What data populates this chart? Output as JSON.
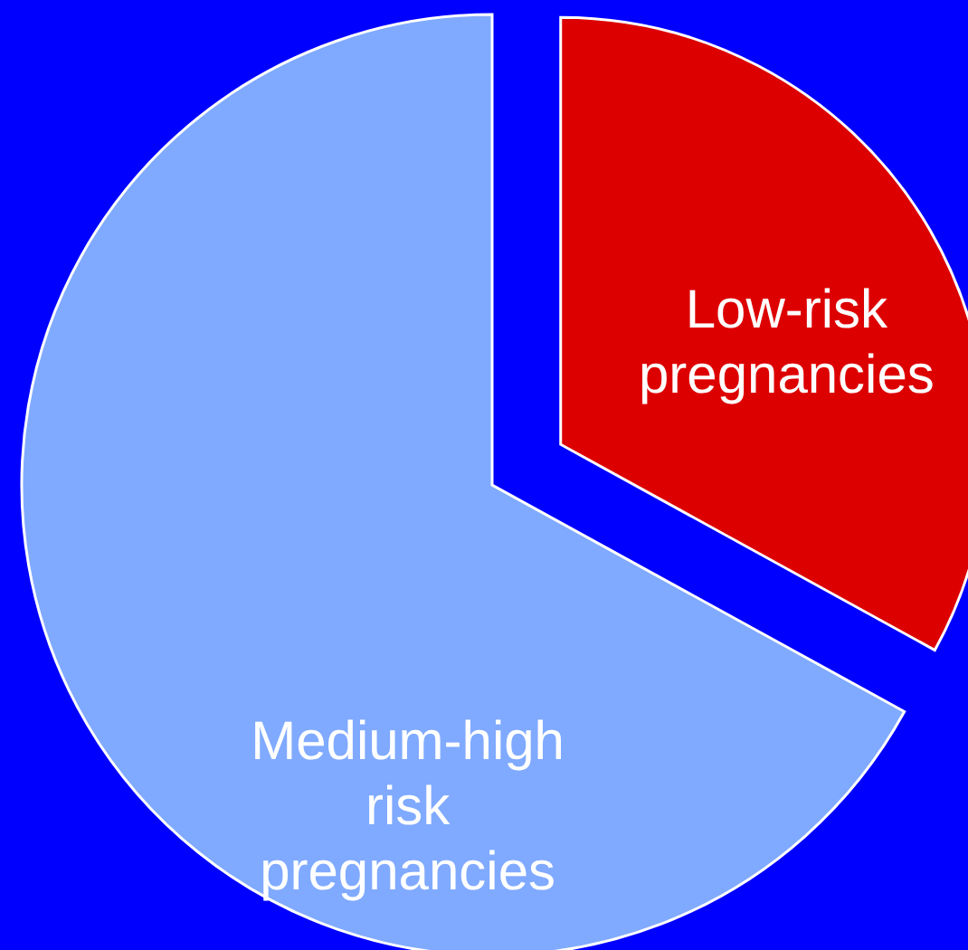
{
  "chart_data": {
    "type": "pie",
    "categories": [
      "Low-risk pregnancies",
      "Medium-high risk pregnancies"
    ],
    "values": [
      33,
      67
    ],
    "colors": [
      "#dd0000",
      "#80aaff"
    ]
  }
}
